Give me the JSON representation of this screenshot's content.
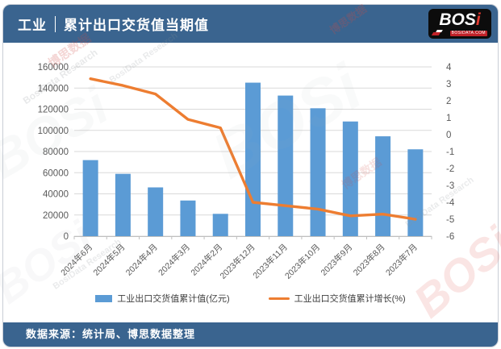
{
  "header": {
    "category": "工业",
    "title": "累计出口交货值当期值"
  },
  "logo": {
    "text_white": "BOS",
    "text_red": "i",
    "domain": "BOSIDATA.COM"
  },
  "footer": {
    "source": "数据来源：统计局、博思数据整理"
  },
  "watermarks": {
    "cn": "博思数据",
    "en": "BosiData Research",
    "logo": "BOSi"
  },
  "colors": {
    "theme_blue": "#3a648f",
    "bar_blue": "#5b9bd5",
    "line_orange": "#ed7d31",
    "gridline": "#d9d9d9",
    "axis_line": "#bfbfbf",
    "axis_text": "#595959"
  },
  "chart_data": {
    "type": "combo",
    "title": "工业 | 累计出口交货值当期值",
    "categories": [
      "2024年6月",
      "2024年5月",
      "2024年4月",
      "2024年3月",
      "2024年2月",
      "2023年12月",
      "2023年11月",
      "2023年10月",
      "2023年9月",
      "2023年8月",
      "2023年7月"
    ],
    "series": [
      {
        "name": "工业出口交货值累计值(亿元)",
        "type": "bar",
        "axis": "left",
        "color": "#5b9bd5",
        "values": [
          71900,
          58900,
          46100,
          33700,
          21100,
          145100,
          132900,
          120900,
          108400,
          94400,
          82100
        ]
      },
      {
        "name": "工业出口交货值累计增长(%)",
        "type": "line",
        "axis": "right",
        "color": "#ed7d31",
        "values": [
          3.3,
          2.9,
          2.4,
          0.9,
          0.4,
          -4.0,
          -4.2,
          -4.4,
          -4.8,
          -4.7,
          -5.0
        ]
      }
    ],
    "left_axis": {
      "min": 0,
      "max": 160000,
      "step": 20000,
      "ticks": [
        "0",
        "20000",
        "40000",
        "60000",
        "80000",
        "100000",
        "120000",
        "140000",
        "160000"
      ]
    },
    "right_axis": {
      "min": -6,
      "max": 4,
      "step": 1,
      "ticks": [
        "-6",
        "-5",
        "-4",
        "-3",
        "-2",
        "-1",
        "0",
        "1",
        "2",
        "3",
        "4"
      ]
    },
    "grid": "horizontal gridlines at left-axis major ticks",
    "legend_position": "bottom"
  }
}
